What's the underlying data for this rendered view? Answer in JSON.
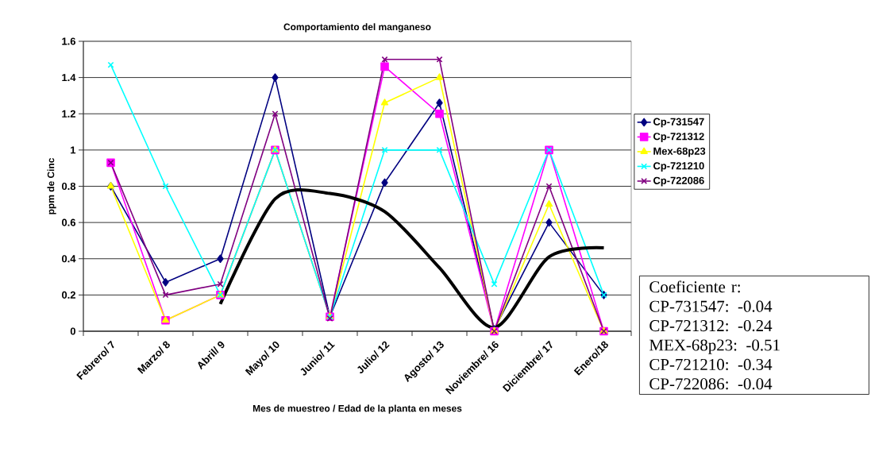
{
  "chart_data": {
    "type": "line",
    "title": "Comportamiento del manganeso",
    "xlabel": "Mes de muestreo / Edad de la planta en meses",
    "ylabel": "ppm de Cinc",
    "categories": [
      "Febrero/ 7",
      "Marzo/ 8",
      "Abril/ 9",
      "Mayo/ 10",
      "Junio/ 11",
      "Julio/ 12",
      "Agosto/ 13",
      "Noviembre/ 16",
      "Diciembre/ 17",
      "Enero/18"
    ],
    "series": [
      {
        "name": "Cp-731547",
        "color": "#000080",
        "marker": "diamond",
        "values": [
          0.8,
          0.27,
          0.4,
          1.4,
          0.08,
          0.82,
          1.26,
          0.01,
          0.6,
          0.2
        ]
      },
      {
        "name": "Cp-721312",
        "color": "#ff00ff",
        "marker": "square",
        "values": [
          0.93,
          0.06,
          0.2,
          1.0,
          0.08,
          1.46,
          1.2,
          0.0,
          1.0,
          0.0
        ]
      },
      {
        "name": "Mex-68p23",
        "color": "#ffff00",
        "marker": "triangle",
        "values": [
          0.8,
          0.06,
          0.2,
          1.0,
          0.08,
          1.26,
          1.4,
          0.0,
          0.7,
          0.0
        ]
      },
      {
        "name": "Cp-721210",
        "color": "#00ffff",
        "marker": "cross",
        "values": [
          1.47,
          0.8,
          0.2,
          1.0,
          0.08,
          1.0,
          1.0,
          0.26,
          1.0,
          0.2
        ]
      },
      {
        "name": "Cp-722086",
        "color": "#800080",
        "marker": "cross",
        "values": [
          0.93,
          0.2,
          0.26,
          1.2,
          0.07,
          1.5,
          1.5,
          0.0,
          0.8,
          0.0
        ]
      },
      {
        "color": "#000000",
        "marker": "none",
        "values": [
          null,
          null,
          0.15,
          0.73,
          0.76,
          0.66,
          0.35,
          0.02,
          0.41,
          0.46
        ]
      }
    ],
    "ylim": [
      0,
      1.6
    ],
    "yticks": [
      0,
      0.2,
      0.4,
      0.6,
      0.8,
      1,
      1.2,
      1.4,
      1.6
    ],
    "grid": "y",
    "legend": "right",
    "line_style": "solid",
    "annotations": [
      "Coeficiente r:",
      "CP-731547:   -0.04",
      "CP-721312:   -0.24",
      "MEX-68p23:  -0.51",
      "CP-721210:   -0.34",
      "CP-722086:   -0.04"
    ]
  }
}
